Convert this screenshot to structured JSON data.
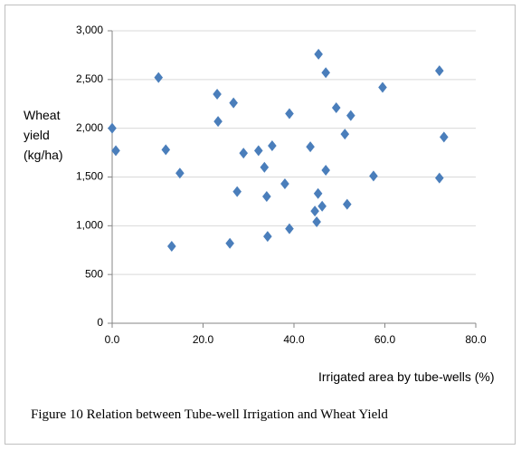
{
  "chart_data": {
    "type": "scatter",
    "caption": "Figure 10  Relation between Tube-well Irrigation and Wheat Yield",
    "x_label": "Irrigated area by tube-wells (%)",
    "y_label": "Wheat yield (kg/ha)",
    "color": "#4a7ebb",
    "grid": true,
    "xlim": [
      0,
      80
    ],
    "ylim": [
      0,
      3000
    ],
    "xticks": [
      {
        "value": 0,
        "label": "0.0"
      },
      {
        "value": 20,
        "label": "20.0"
      },
      {
        "value": 40,
        "label": "40.0"
      },
      {
        "value": 60,
        "label": "60.0"
      },
      {
        "value": 80,
        "label": "80.0"
      }
    ],
    "yticks": [
      0,
      500,
      {
        "value": 1000,
        "label": "1,000"
      },
      {
        "value": 1500,
        "label": "1,500"
      },
      {
        "value": 2000,
        "label": "2,000"
      },
      {
        "value": 2500,
        "label": "2,500"
      },
      {
        "value": 3000,
        "label": "3,000"
      }
    ],
    "x": [
      0,
      0.8,
      10.2,
      11.8,
      13.1,
      14.9,
      23.1,
      23.3,
      25.9,
      26.7,
      27.5,
      28.9,
      32.2,
      33.5,
      34,
      34.2,
      35.2,
      38,
      39,
      39,
      43.6,
      44.6,
      45,
      45.3,
      46.2,
      45.4,
      47,
      47,
      49.3,
      51.2,
      52.5,
      51.7,
      57.5,
      59.5,
      72,
      72,
      73
    ],
    "y": [
      2000,
      1770,
      2520,
      1780,
      790,
      1540,
      2350,
      2070,
      820,
      2260,
      1350,
      1745,
      1770,
      1600,
      1300,
      890,
      1820,
      1430,
      2150,
      970,
      1810,
      1150,
      1040,
      1330,
      1200,
      2760,
      2570,
      1570,
      2210,
      1940,
      2130,
      1220,
      1510,
      2420,
      2590,
      1490,
      1910
    ]
  }
}
